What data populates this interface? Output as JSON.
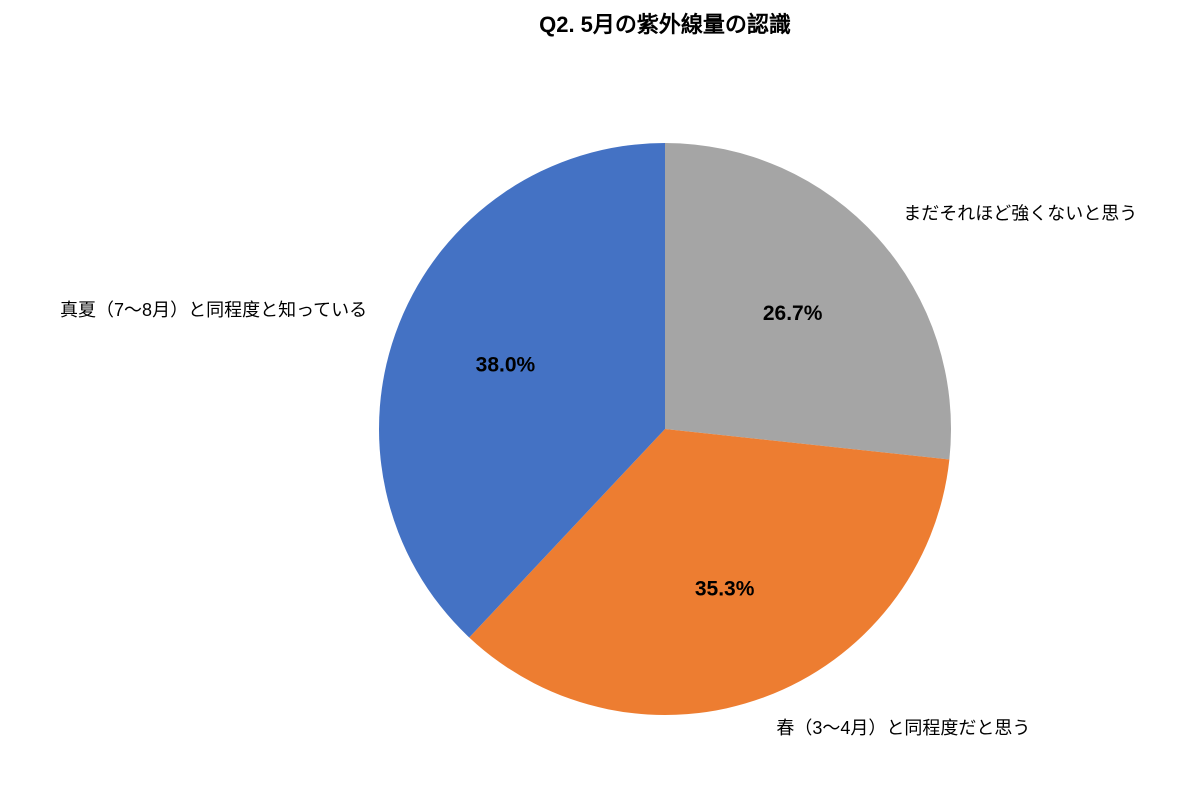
{
  "chart_data": {
    "type": "pie",
    "title": "Q2. 5月の紫外線量の認識",
    "categories": [
      "まだそれほど強くないと思う",
      "春（3〜4月）と同程度だと思う",
      "真夏（7〜8月）と同程度と知っている"
    ],
    "values": [
      26.7,
      35.3,
      38.0
    ],
    "value_labels": [
      "26.7%",
      "35.3%",
      "38.0%"
    ],
    "colors": [
      "#a5a5a5",
      "#ed7d31",
      "#4472c4"
    ]
  }
}
